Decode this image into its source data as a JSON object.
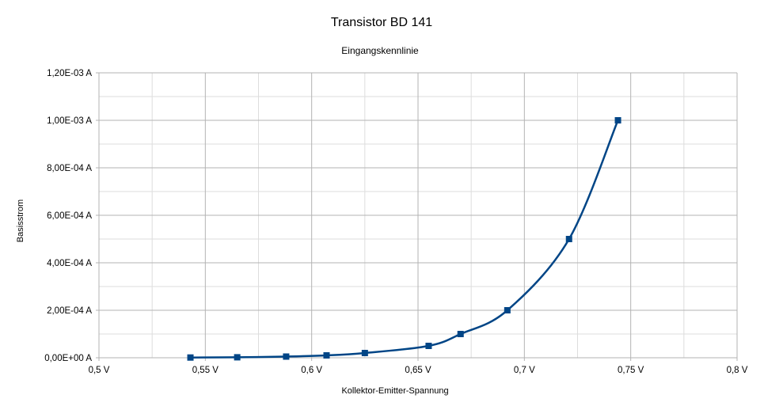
{
  "chart_data": {
    "type": "line",
    "title": "Transistor BD 141",
    "subtitle": "Eingangskennlinie",
    "xlabel": "Kollektor-Emitter-Spannung",
    "ylabel": "Basisstrom",
    "xlim": [
      0.5,
      0.8
    ],
    "ylim": [
      0,
      0.0012
    ],
    "x_ticks": [
      "0,5 V",
      "0,55 V",
      "0,6 V",
      "0,65 V",
      "0,7 V",
      "0,75 V",
      "0,8 V"
    ],
    "y_ticks": [
      "0,00E+00 A",
      "2,00E-04 A",
      "4,00E-04 A",
      "6,00E-04 A",
      "8,00E-04 A",
      "1,00E-03 A",
      "1,20E-03 A"
    ],
    "grid": true,
    "smooth": true,
    "series": [
      {
        "color": "#004586",
        "marker": "square",
        "x": [
          0.543,
          0.565,
          0.588,
          0.607,
          0.625,
          0.655,
          0.67,
          0.692,
          0.721,
          0.744
        ],
        "y": [
          1e-06,
          2e-06,
          5e-06,
          1e-05,
          2e-05,
          5e-05,
          0.0001,
          0.0002,
          0.0005,
          0.001
        ]
      }
    ]
  }
}
